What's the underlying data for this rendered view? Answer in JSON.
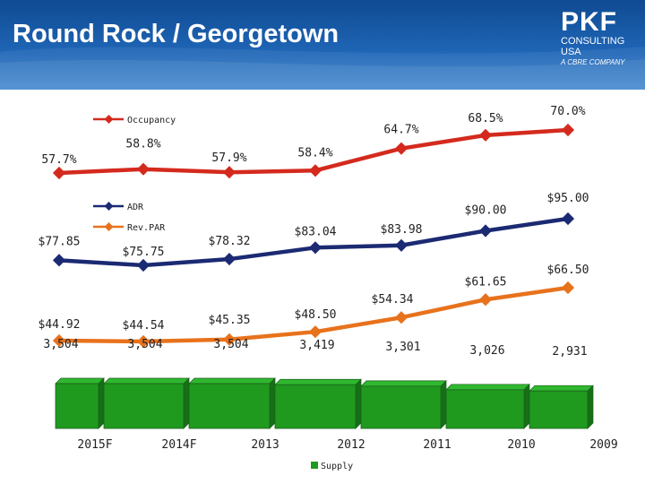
{
  "title": "Round Rock / Georgetown",
  "logo": {
    "main": "PKF",
    "line1": "CONSULTING",
    "line2": "USA",
    "line3": "A CBRE COMPANY"
  },
  "colors": {
    "occupancy": "#d42a1e",
    "adr": "#1b2a72",
    "revpar": "#e8721c",
    "supply": "#1f9a1f",
    "header": "#1e64b4"
  },
  "chart_data": {
    "type": "line",
    "categories": [
      "2015F",
      "2014F",
      "2013",
      "2012",
      "2011",
      "2010",
      "2009"
    ],
    "series": [
      {
        "name": "Occupancy",
        "values": [
          57.7,
          58.8,
          57.9,
          58.4,
          64.7,
          68.5,
          70.0
        ],
        "labels": [
          "57.7%",
          "58.8%",
          "57.9%",
          "58.4%",
          "64.7%",
          "68.5%",
          "70.0%"
        ]
      },
      {
        "name": "ADR",
        "values": [
          77.85,
          75.75,
          78.32,
          83.04,
          83.98,
          90.0,
          95.0
        ],
        "labels": [
          "$77.85",
          "$75.75",
          "$78.32",
          "$83.04",
          "$83.98",
          "$90.00",
          "$95.00"
        ]
      },
      {
        "name": "Rev.PAR",
        "values": [
          44.92,
          44.54,
          45.35,
          48.5,
          54.34,
          61.65,
          66.5
        ],
        "labels": [
          "$44.92",
          "$44.54",
          "$45.35",
          "$48.50",
          "$54.34",
          "$61.65",
          "$66.50"
        ]
      },
      {
        "name": "Supply",
        "type": "bar",
        "values": [
          3504,
          3504,
          3504,
          3419,
          3301,
          3026,
          2931
        ],
        "labels": [
          "3,504",
          "3,504",
          "3,504",
          "3,419",
          "3,301",
          "3,026",
          "2,931"
        ]
      }
    ],
    "legend": {
      "occupancy": "Occupancy",
      "adr": "ADR",
      "revpar": "Rev.PAR",
      "supply": "Supply"
    }
  }
}
